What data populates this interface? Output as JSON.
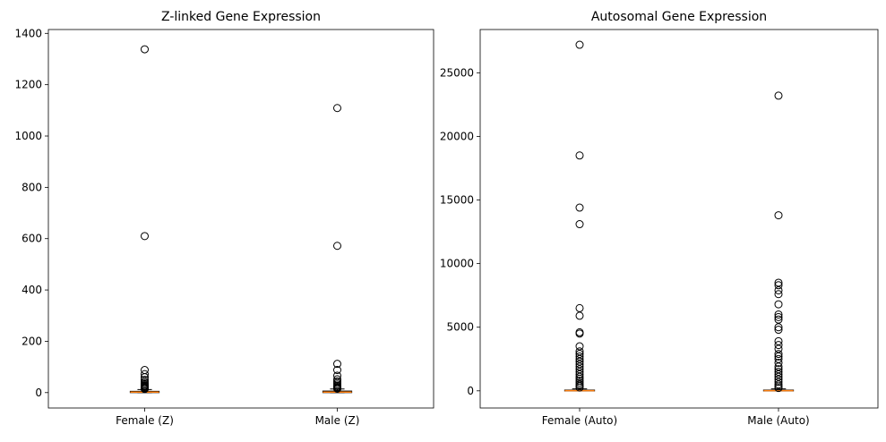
{
  "chart_data": [
    {
      "type": "box",
      "title": "Z-linked Gene Expression",
      "categories": [
        "Female (Z)",
        "Male (Z)"
      ],
      "ylim": [
        -60,
        1415
      ],
      "yticks": [
        0,
        200,
        400,
        600,
        800,
        1000,
        1200,
        1400
      ],
      "grid": false,
      "series": [
        {
          "label": "Female (Z)",
          "median": 2,
          "q1": 0,
          "q3": 5,
          "whisker_low": 0,
          "whisker_high": 12,
          "outliers": [
            1338,
            610,
            88,
            72,
            60,
            50,
            42,
            36,
            31,
            27,
            24,
            21,
            18,
            16,
            14
          ]
        },
        {
          "label": "Male (Z)",
          "median": 2,
          "q1": 0,
          "q3": 6,
          "whisker_low": 0,
          "whisker_high": 14,
          "outliers": [
            1109,
            572,
            112,
            88,
            66,
            52,
            44,
            37,
            31,
            26,
            22,
            19,
            17,
            15
          ]
        }
      ]
    },
    {
      "type": "box",
      "title": "Autosomal Gene Expression",
      "categories": [
        "Female (Auto)",
        "Male (Auto)"
      ],
      "ylim": [
        -1350,
        28400
      ],
      "yticks": [
        0,
        5000,
        10000,
        15000,
        20000,
        25000
      ],
      "grid": false,
      "series": [
        {
          "label": "Female (Auto)",
          "median": 10,
          "q1": 0,
          "q3": 60,
          "whisker_low": 0,
          "whisker_high": 150,
          "outliers": [
            27200,
            18500,
            14400,
            13100,
            6500,
            5900,
            4600,
            4500,
            3500,
            3100,
            2900,
            2700,
            2500,
            2300,
            2100,
            1900,
            1700,
            1500,
            1300,
            1100,
            950,
            800,
            650,
            500,
            380,
            260
          ]
        },
        {
          "label": "Male (Auto)",
          "median": 10,
          "q1": 0,
          "q3": 60,
          "whisker_low": 0,
          "whisker_high": 150,
          "outliers": [
            23200,
            13800,
            8500,
            8300,
            7900,
            7600,
            6800,
            6000,
            5800,
            5600,
            5000,
            4800,
            3900,
            3600,
            3300,
            2900,
            2700,
            2500,
            2200,
            1900,
            1700,
            1500,
            1300,
            1100,
            900,
            700,
            500,
            350,
            220
          ]
        }
      ]
    }
  ],
  "style": {
    "box_edge": "#000000",
    "median_color": "#ff7f0e",
    "outlier_edge": "#000000"
  }
}
